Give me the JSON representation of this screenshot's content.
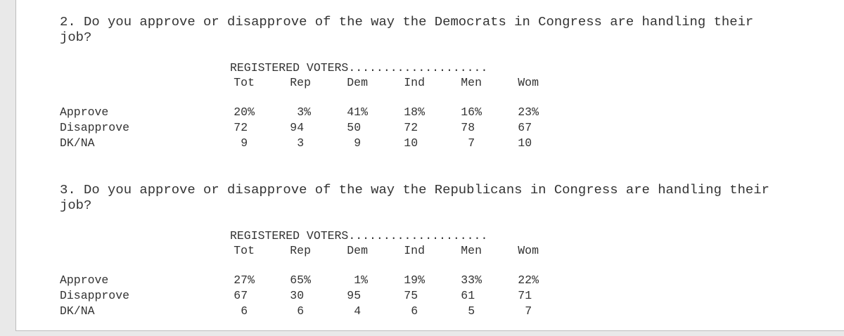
{
  "sections": [
    {
      "question_lines": [
        "2. Do you approve or disapprove of the way the Democrats in Congress are handling their",
        "job?"
      ],
      "header": "REGISTERED VOTERS....................",
      "columns": [
        "Tot",
        "Rep",
        "Dem",
        "Ind",
        "Men",
        "Wom"
      ],
      "rows": [
        {
          "label": "Approve",
          "values": [
            "20%",
            "3%",
            "41%",
            "18%",
            "16%",
            "23%"
          ]
        },
        {
          "label": "Disapprove",
          "values": [
            "72",
            "94",
            "50",
            "72",
            "78",
            "67"
          ]
        },
        {
          "label": "DK/NA",
          "values": [
            "9",
            "3",
            "9",
            "10",
            "7",
            "10"
          ]
        }
      ]
    },
    {
      "question_lines": [
        "3. Do you approve or disapprove of the way the Republicans in Congress are handling their",
        "job?"
      ],
      "header": "REGISTERED VOTERS....................",
      "columns": [
        "Tot",
        "Rep",
        "Dem",
        "Ind",
        "Men",
        "Wom"
      ],
      "rows": [
        {
          "label": "Approve",
          "values": [
            "27%",
            "65%",
            "1%",
            "19%",
            "33%",
            "22%"
          ]
        },
        {
          "label": "Disapprove",
          "values": [
            "67",
            "30",
            "95",
            "75",
            "61",
            "71"
          ]
        },
        {
          "label": "DK/NA",
          "values": [
            "6",
            "6",
            "4",
            "6",
            "5",
            "7"
          ]
        }
      ]
    }
  ]
}
